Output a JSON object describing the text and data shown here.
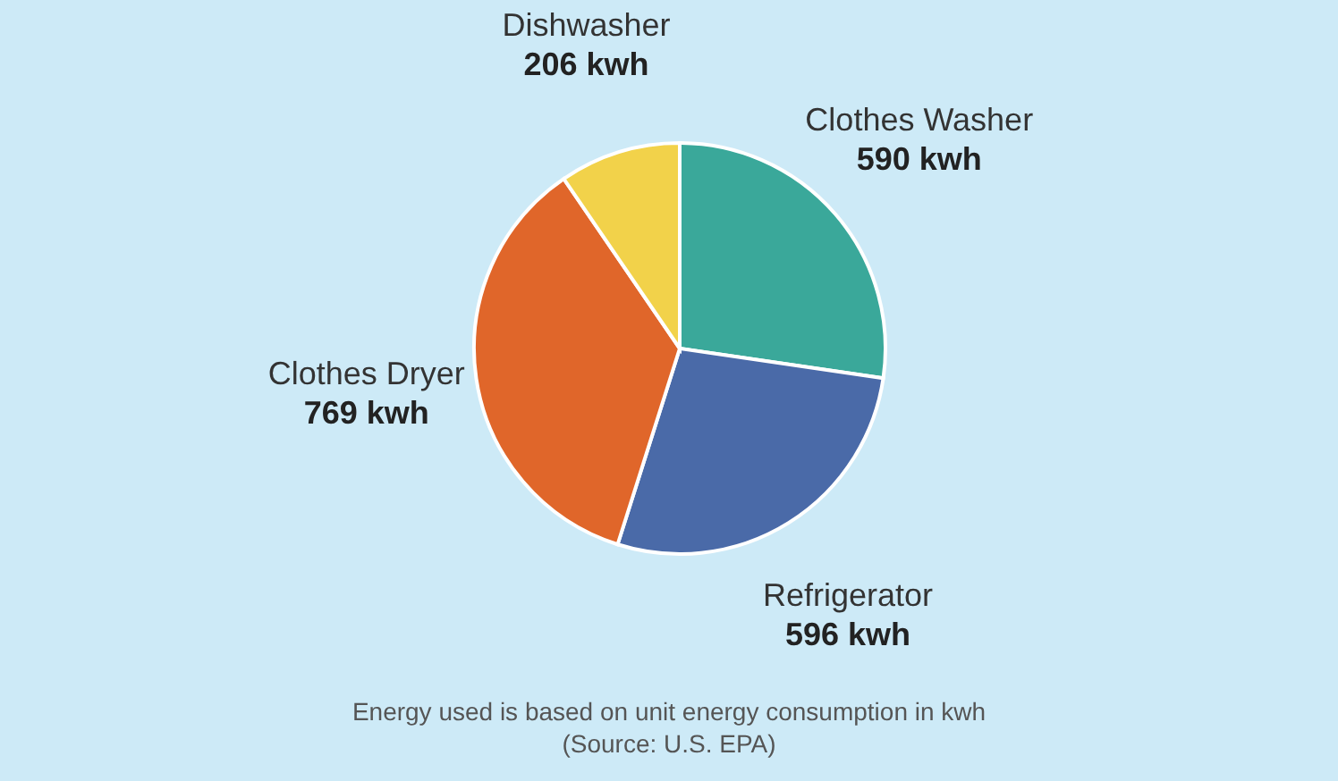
{
  "chart_data": {
    "type": "pie",
    "categories": [
      "Clothes Washer",
      "Refrigerator",
      "Clothes Dryer",
      "Dishwasher"
    ],
    "values": [
      590,
      596,
      769,
      206
    ],
    "colors": [
      "#3aa89a",
      "#4a6aa8",
      "#e0662a",
      "#f2d24a"
    ],
    "value_labels": [
      "590 kwh",
      "596 kwh",
      "769 kwh",
      "206 kwh"
    ],
    "annotations": [
      "Energy used is based on unit energy consumption in kwh",
      "(Source: U.S. EPA)"
    ]
  }
}
